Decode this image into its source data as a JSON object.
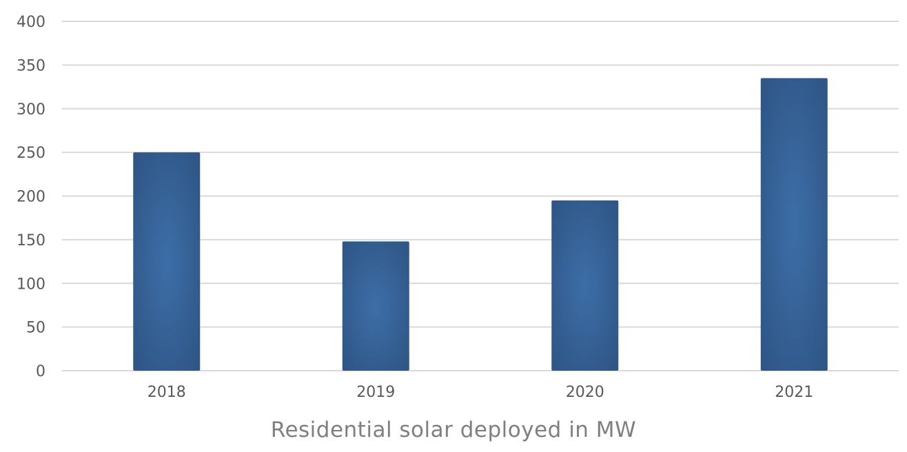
{
  "chart_data": {
    "type": "bar",
    "categories": [
      "2018",
      "2019",
      "2020",
      "2021"
    ],
    "values": [
      250,
      148,
      195,
      335
    ],
    "xlabel": "Residential solar deployed in MW",
    "ylabel": "",
    "ylim": [
      0,
      400
    ],
    "yticks": [
      0,
      50,
      100,
      150,
      200,
      250,
      300,
      350,
      400
    ],
    "grid": true,
    "legend": "none",
    "colors": {
      "bar_dark": "#2f5686",
      "bar_light": "#3d6ea8",
      "grid": "#d9d9d9",
      "tick_text": "#595959",
      "title_text": "#7f7f7f"
    }
  }
}
